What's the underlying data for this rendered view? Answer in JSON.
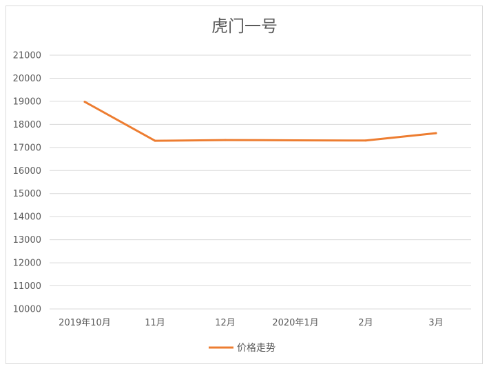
{
  "chart_data": {
    "type": "line",
    "title": "虎门一号",
    "categories": [
      "2019年10月",
      "11月",
      "12月",
      "2020年1月",
      "2月",
      "3月"
    ],
    "series": [
      {
        "name": "价格走势",
        "color": "#ED7D31",
        "values": [
          18980,
          17290,
          17320,
          17310,
          17300,
          17620
        ]
      }
    ],
    "ylim": [
      10000,
      21000
    ],
    "yticks": [
      "10000",
      "11000",
      "12000",
      "13000",
      "14000",
      "15000",
      "16000",
      "17000",
      "18000",
      "19000",
      "20000",
      "21000"
    ],
    "grid": true,
    "legend_position": "bottom"
  }
}
